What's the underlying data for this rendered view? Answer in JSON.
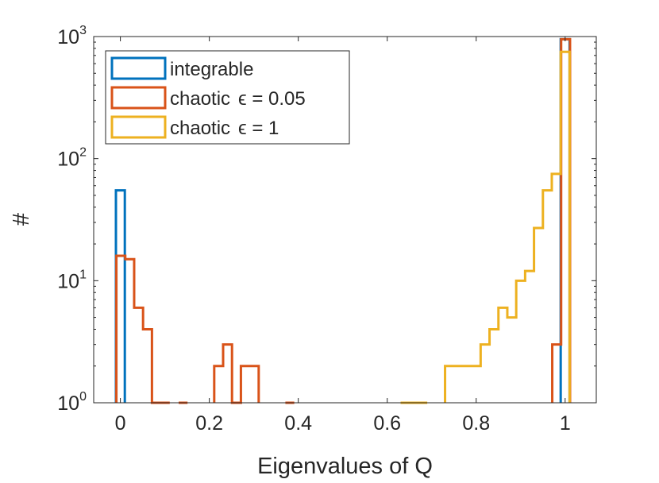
{
  "chart_data": {
    "type": "histogram-stairs",
    "yscale": "log",
    "xlabel": "Eigenvalues of Q",
    "ylabel": "#",
    "xlim": [
      -0.06,
      1.07
    ],
    "ylim": [
      1,
      1000
    ],
    "xticks": [
      0,
      0.2,
      0.4,
      0.6,
      0.8,
      1
    ],
    "xtick_labels": [
      "0",
      "0.2",
      "0.4",
      "0.6",
      "0.8",
      "1"
    ],
    "yticks": [
      1,
      10,
      100,
      1000
    ],
    "ytick_base": "10",
    "ytick_exponents": [
      "0",
      "1",
      "2",
      "3"
    ],
    "legend_position": "top-left",
    "series": [
      {
        "name": "integrable",
        "label_main": "integrable",
        "label_param": "",
        "color": "#0072BD",
        "bins": [
          {
            "x0": -0.01,
            "x1": 0.01,
            "count": 55
          },
          {
            "x0": 0.99,
            "x1": 1.01,
            "count": 950
          }
        ]
      },
      {
        "name": "chaotic ε = 0.05",
        "label_main": "chaotic",
        "label_param": "ϵ = 0.05",
        "color": "#D95319",
        "bins": [
          {
            "x0": -0.009,
            "x1": 0.011,
            "count": 16
          },
          {
            "x0": 0.011,
            "x1": 0.031,
            "count": 15
          },
          {
            "x0": 0.031,
            "x1": 0.051,
            "count": 6
          },
          {
            "x0": 0.051,
            "x1": 0.071,
            "count": 4
          },
          {
            "x0": 0.071,
            "x1": 0.091,
            "count": 1
          },
          {
            "x0": 0.091,
            "x1": 0.111,
            "count": 1
          },
          {
            "x0": 0.131,
            "x1": 0.151,
            "count": 1
          },
          {
            "x0": 0.211,
            "x1": 0.231,
            "count": 2
          },
          {
            "x0": 0.231,
            "x1": 0.251,
            "count": 3
          },
          {
            "x0": 0.251,
            "x1": 0.271,
            "count": 1
          },
          {
            "x0": 0.271,
            "x1": 0.291,
            "count": 2
          },
          {
            "x0": 0.291,
            "x1": 0.311,
            "count": 2
          },
          {
            "x0": 0.371,
            "x1": 0.391,
            "count": 1
          },
          {
            "x0": 0.971,
            "x1": 0.991,
            "count": 3
          },
          {
            "x0": 0.991,
            "x1": 1.011,
            "count": 950
          }
        ]
      },
      {
        "name": "chaotic ε = 1",
        "label_main": "chaotic",
        "label_param": "ϵ = 1",
        "color": "#EDB120",
        "bins": [
          {
            "x0": 0.63,
            "x1": 0.69,
            "count": 1
          },
          {
            "x0": 0.73,
            "x1": 0.81,
            "count": 2
          },
          {
            "x0": 0.81,
            "x1": 0.83,
            "count": 3
          },
          {
            "x0": 0.83,
            "x1": 0.85,
            "count": 4
          },
          {
            "x0": 0.85,
            "x1": 0.87,
            "count": 6
          },
          {
            "x0": 0.87,
            "x1": 0.89,
            "count": 5
          },
          {
            "x0": 0.89,
            "x1": 0.91,
            "count": 10
          },
          {
            "x0": 0.91,
            "x1": 0.93,
            "count": 12
          },
          {
            "x0": 0.93,
            "x1": 0.95,
            "count": 27
          },
          {
            "x0": 0.95,
            "x1": 0.97,
            "count": 55
          },
          {
            "x0": 0.97,
            "x1": 0.99,
            "count": 75
          },
          {
            "x0": 0.99,
            "x1": 1.01,
            "count": 750
          }
        ]
      }
    ]
  }
}
